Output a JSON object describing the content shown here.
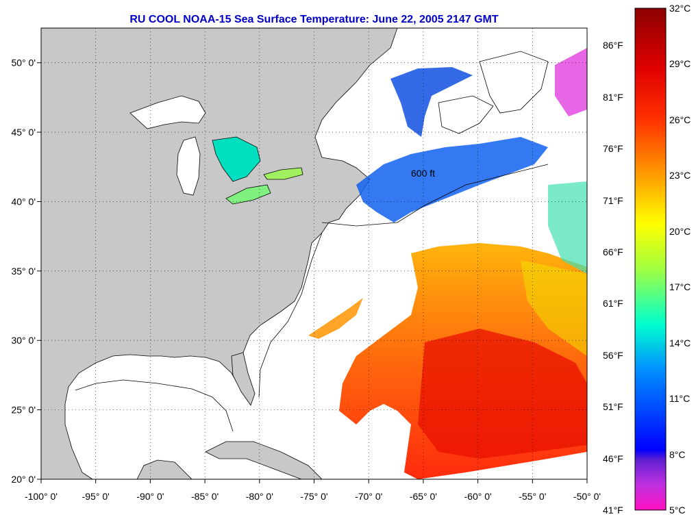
{
  "title": "RU COOL  NOAA-15  Sea Surface Temperature:  June 22, 2005 2147 GMT",
  "colors": {
    "land": "#c8c8c8",
    "water": "#ffffff",
    "title": "#0000c8",
    "grid": "#000000"
  },
  "lon_ticks": [
    "-100° 0'",
    "-95° 0'",
    "-90° 0'",
    "-85° 0'",
    "-80° 0'",
    "-75° 0'",
    "-70° 0'",
    "-65° 0'",
    "-60° 0'",
    "-55° 0'",
    "-50° 0'"
  ],
  "lon_values": [
    -100,
    -95,
    -90,
    -85,
    -80,
    -75,
    -70,
    -65,
    -60,
    -55,
    -50
  ],
  "lat_ticks": [
    "20° 0'",
    "25° 0'",
    "30° 0'",
    "35° 0'",
    "40° 0'",
    "45° 0'",
    "50° 0'"
  ],
  "lat_values": [
    20,
    25,
    30,
    35,
    40,
    45,
    50
  ],
  "lon_range": [
    -100,
    -50
  ],
  "lat_range": [
    20,
    52.5
  ],
  "isobath_label": "600 ft",
  "colorbar": {
    "celsius_labels": [
      "32°C",
      "29°C",
      "26°C",
      "23°C",
      "20°C",
      "17°C",
      "14°C",
      "11°C",
      "8°C",
      "5°C"
    ],
    "celsius_values": [
      32,
      29,
      26,
      23,
      20,
      17,
      14,
      11,
      8,
      5
    ],
    "fahrenheit_labels": [
      "86°F",
      "81°F",
      "76°F",
      "71°F",
      "66°F",
      "61°F",
      "56°F",
      "51°F",
      "46°F",
      "41°F"
    ],
    "fahrenheit_values": [
      86,
      81,
      76,
      71,
      66,
      61,
      56,
      51,
      46,
      41
    ],
    "range_c": [
      5,
      32
    ]
  }
}
